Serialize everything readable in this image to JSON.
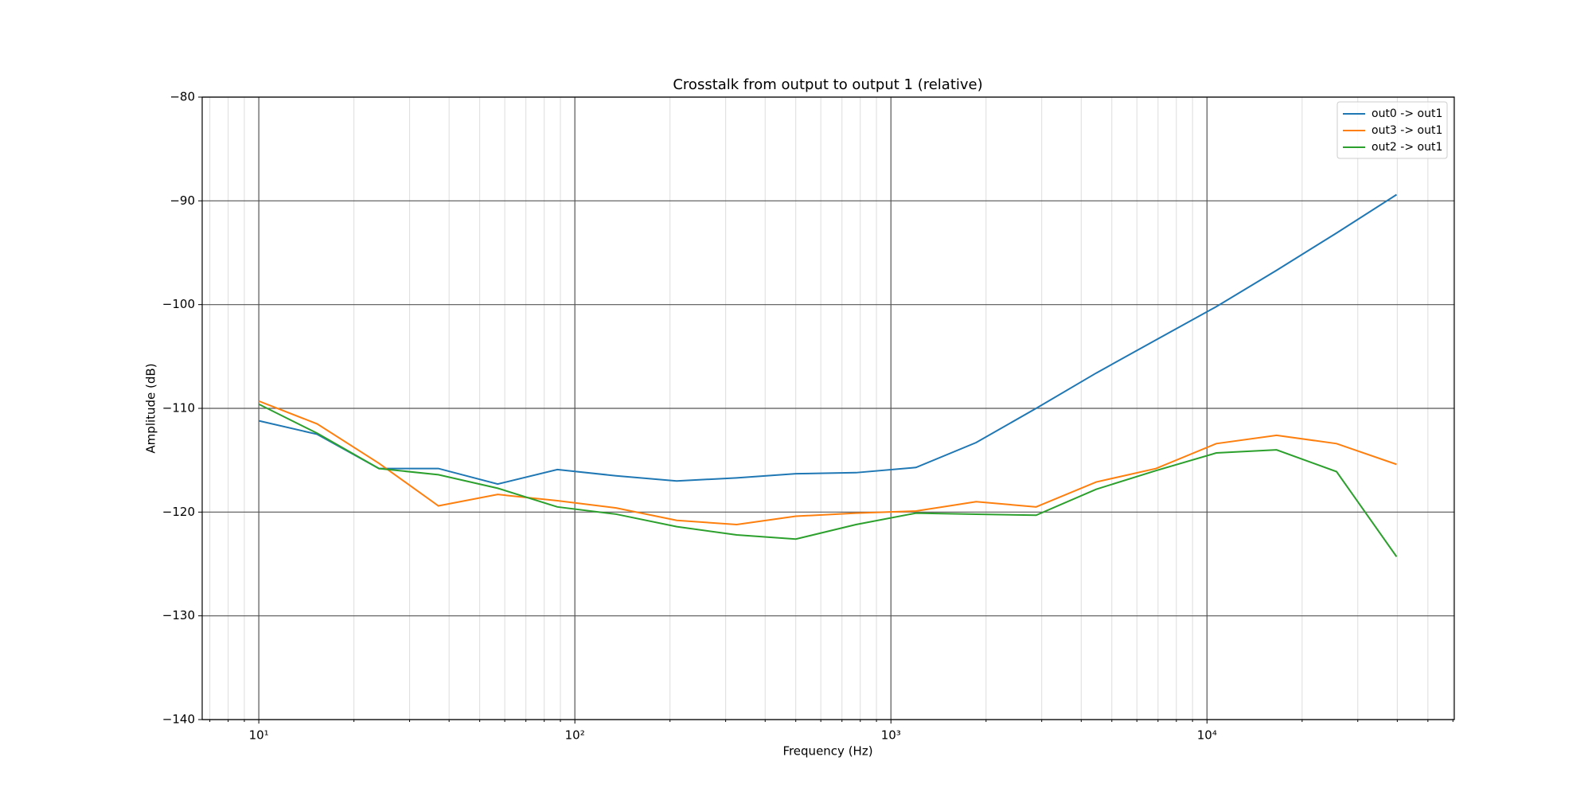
{
  "chart_data": {
    "type": "line",
    "title": "Crosstalk from output to output 1 (relative)",
    "xlabel": "Frequency (Hz)",
    "ylabel": "Amplitude (dB)",
    "xscale": "log",
    "grid": true,
    "legend": "upper right",
    "x": [
      10,
      15.3,
      24,
      37,
      57,
      88,
      135,
      210,
      325,
      500,
      775,
      1200,
      1860,
      2880,
      4460,
      6900,
      10700,
      16600,
      25700,
      39800
    ],
    "series": [
      {
        "name": "out0 -> out1",
        "color": "#1f77b4",
        "values": [
          -111.2,
          -112.5,
          -115.8,
          -115.8,
          -117.3,
          -115.9,
          -116.5,
          -117.0,
          -116.7,
          -116.3,
          -116.2,
          -115.7,
          -113.3,
          -110.0,
          -106.6,
          -103.4,
          -100.2,
          -96.7,
          -93.1,
          -89.4
        ]
      },
      {
        "name": "out3 -> out1",
        "color": "#ff7f0e",
        "values": [
          -109.3,
          -111.5,
          -115.3,
          -119.4,
          -118.3,
          -118.9,
          -119.6,
          -120.8,
          -121.2,
          -120.4,
          -120.1,
          -119.9,
          -119.0,
          -119.5,
          -117.1,
          -115.8,
          -113.4,
          -112.6,
          -113.4,
          -115.4
        ]
      },
      {
        "name": "out2 -> out1",
        "color": "#2ca02c",
        "values": [
          -109.6,
          -112.4,
          -115.8,
          -116.4,
          -117.7,
          -119.5,
          -120.2,
          -121.4,
          -122.2,
          -122.6,
          -121.2,
          -120.1,
          -120.2,
          -120.3,
          -117.8,
          -116.0,
          -114.3,
          -114.0,
          -116.1,
          -124.3
        ]
      }
    ],
    "xlim": [
      6.62,
      60600
    ],
    "xticks": [
      {
        "value": 10,
        "label": "10¹"
      },
      {
        "value": 100,
        "label": "10²"
      },
      {
        "value": 1000,
        "label": "10³"
      },
      {
        "value": 10000,
        "label": "10⁴"
      }
    ],
    "xminorticks": [
      7,
      8,
      9,
      20,
      30,
      40,
      50,
      60,
      70,
      80,
      90,
      200,
      300,
      400,
      500,
      600,
      700,
      800,
      900,
      2000,
      3000,
      4000,
      5000,
      6000,
      7000,
      8000,
      9000,
      20000,
      30000,
      40000,
      50000,
      60000
    ],
    "ylim": [
      -140,
      -80
    ],
    "yticks": [
      {
        "value": -140,
        "label": "−140"
      },
      {
        "value": -130,
        "label": "−130"
      },
      {
        "value": -120,
        "label": "−120"
      },
      {
        "value": -110,
        "label": "−110"
      },
      {
        "value": -100,
        "label": "−100"
      },
      {
        "value": -90,
        "label": "−90"
      },
      {
        "value": -80,
        "label": "−80"
      }
    ]
  }
}
